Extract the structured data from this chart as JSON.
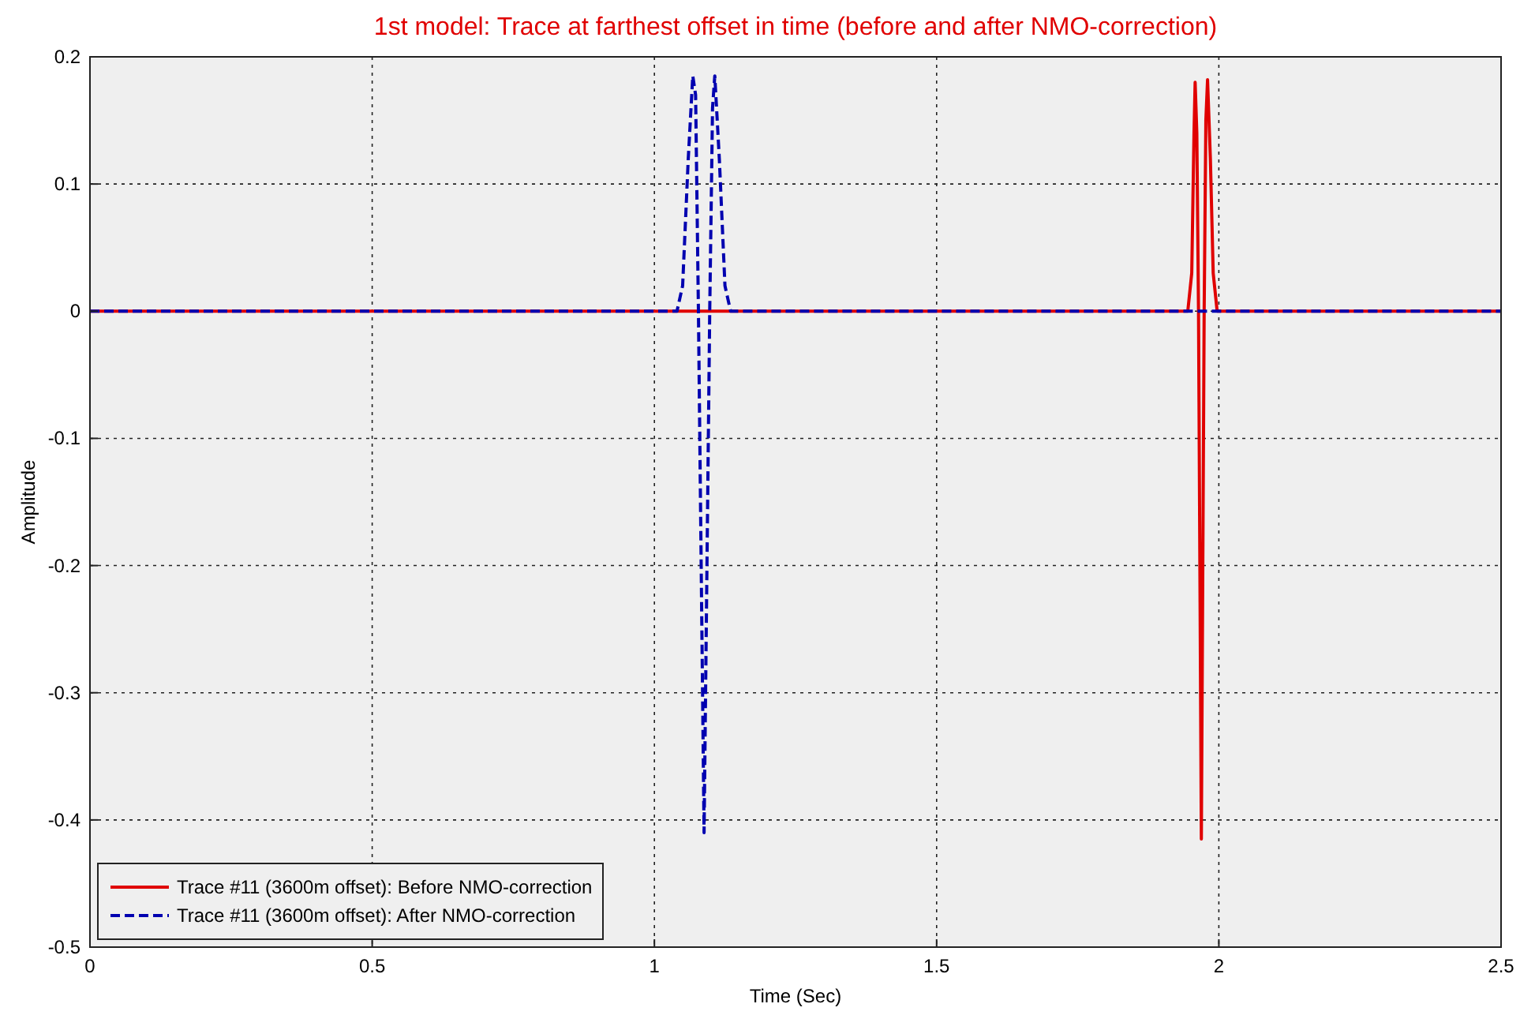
{
  "chart_data": {
    "type": "line",
    "title": "1st model: Trace at farthest offset in time (before and after NMO-correction)",
    "xlabel": "Time (Sec)",
    "ylabel": "Amplitude",
    "xlim": [
      0,
      2.5
    ],
    "ylim": [
      -0.5,
      0.2
    ],
    "xticks": [
      0,
      0.5,
      1,
      1.5,
      2,
      2.5
    ],
    "yticks": [
      -0.5,
      -0.4,
      -0.3,
      -0.2,
      -0.1,
      0,
      0.1,
      0.2
    ],
    "grid": true,
    "legend": "bottom left",
    "series": [
      {
        "name": "Trace #11 (3600m offset): Before NMO-correction",
        "color": "#e00000",
        "line_style": "solid",
        "x": [
          0,
          1.945,
          1.952,
          1.956,
          1.958,
          1.961,
          1.964,
          1.969,
          1.974,
          1.977,
          1.98,
          1.985,
          1.99,
          1.997,
          2.5
        ],
        "values": [
          0,
          0,
          0.03,
          0.14,
          0.18,
          0.14,
          0,
          -0.415,
          0,
          0.15,
          0.182,
          0.12,
          0.03,
          0,
          0
        ]
      },
      {
        "name": "Trace #11 (3600m offset): After NMO-correction",
        "color": "#0000b0",
        "line_style": "dashed",
        "x": [
          0,
          1.04,
          1.05,
          1.06,
          1.068,
          1.073,
          1.078,
          1.088,
          1.098,
          1.103,
          1.107,
          1.115,
          1.125,
          1.135,
          2.5
        ],
        "values": [
          0,
          0,
          0.02,
          0.12,
          0.185,
          0.17,
          0,
          -0.41,
          0,
          0.16,
          0.185,
          0.12,
          0.02,
          0,
          0
        ]
      }
    ]
  }
}
